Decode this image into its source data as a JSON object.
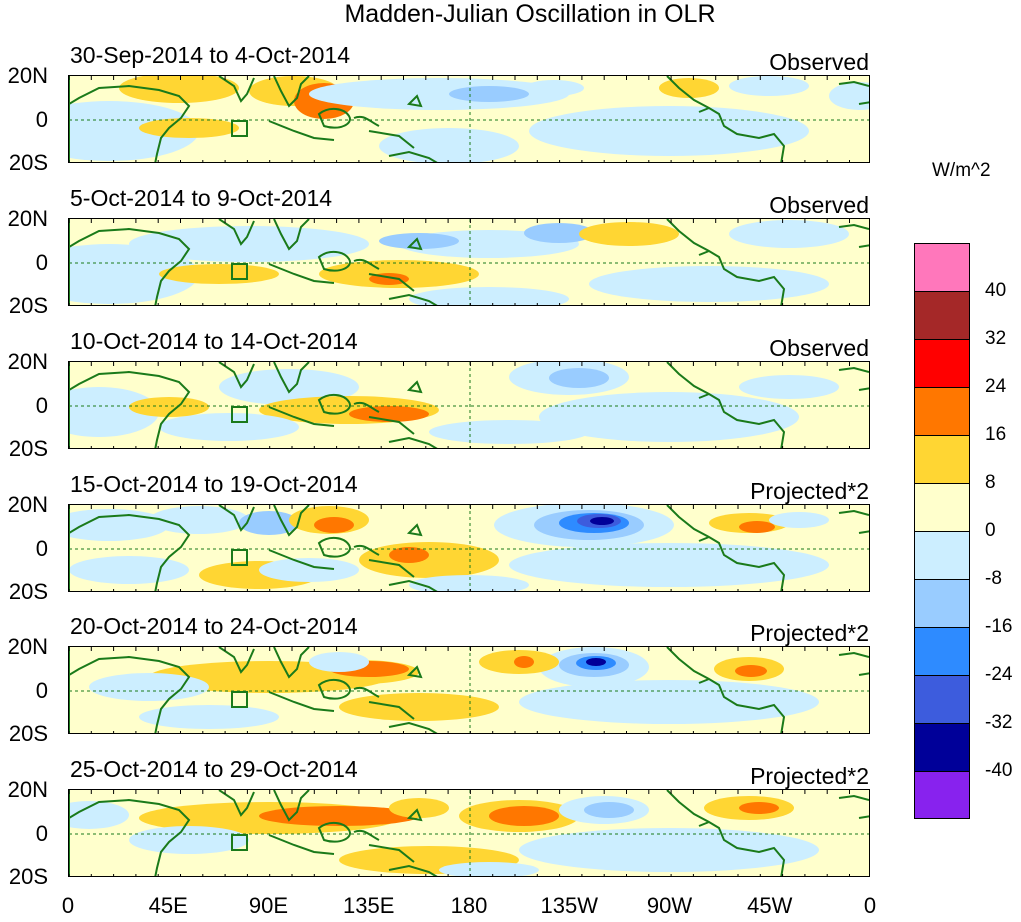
{
  "title": "Madden-Julian Oscillation in OLR",
  "panels": [
    {
      "date_range": "30-Sep-2014 to 4-Oct-2014",
      "type": "Observed"
    },
    {
      "date_range": "5-Oct-2014 to 9-Oct-2014",
      "type": "Observed"
    },
    {
      "date_range": "10-Oct-2014 to 14-Oct-2014",
      "type": "Observed"
    },
    {
      "date_range": "15-Oct-2014 to 19-Oct-2014",
      "type": "Projected*2"
    },
    {
      "date_range": "20-Oct-2014 to 24-Oct-2014",
      "type": "Projected*2"
    },
    {
      "date_range": "25-Oct-2014 to 29-Oct-2014",
      "type": "Projected*2"
    }
  ],
  "lat_labels": [
    "20N",
    "0",
    "20S"
  ],
  "lon_labels": [
    "0",
    "45E",
    "90E",
    "135E",
    "180",
    "135W",
    "90W",
    "45W",
    "0"
  ],
  "colorbar": {
    "unit": "W/m^2",
    "labels": [
      "40",
      "32",
      "24",
      "16",
      "8",
      "0",
      "-8",
      "-16",
      "-24",
      "-32",
      "-40"
    ],
    "colors": [
      "#ff77bb",
      "#a52828",
      "#ff0000",
      "#ff7700",
      "#ffd633",
      "#ffffcc",
      "#cceeff",
      "#99ccff",
      "#2e8bff",
      "#3d5cdd",
      "#000099",
      "#8822ee"
    ]
  },
  "map_colors": {
    "land_outline": "#1a7a1a",
    "ocean_neutral": "#ffffcc"
  }
}
